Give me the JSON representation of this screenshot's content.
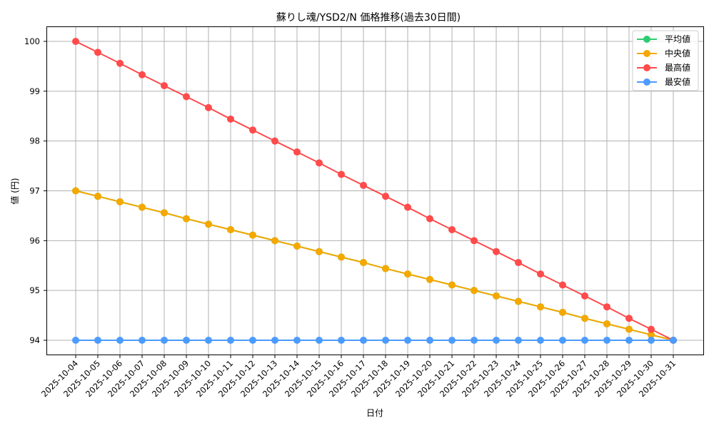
{
  "chart_data": {
    "type": "line",
    "title": "蘇りし魂/YSD2/N 価格推移(過去30日間)",
    "xlabel": "日付",
    "ylabel": "値 (円)",
    "ylim": [
      93.7,
      100.3
    ],
    "yticks": [
      94,
      95,
      96,
      97,
      98,
      99,
      100
    ],
    "grid": true,
    "legend_position": "upper right",
    "x": [
      "2025-10-04",
      "2025-10-05",
      "2025-10-06",
      "2025-10-07",
      "2025-10-08",
      "2025-10-09",
      "2025-10-10",
      "2025-10-11",
      "2025-10-12",
      "2025-10-13",
      "2025-10-14",
      "2025-10-15",
      "2025-10-16",
      "2025-10-17",
      "2025-10-18",
      "2025-10-19",
      "2025-10-20",
      "2025-10-21",
      "2025-10-22",
      "2025-10-23",
      "2025-10-24",
      "2025-10-25",
      "2025-10-26",
      "2025-10-27",
      "2025-10-28",
      "2025-10-29",
      "2025-10-30",
      "2025-10-31"
    ],
    "series": [
      {
        "name": "平均値",
        "color": "#2ecc71",
        "values": [
          97.0,
          96.89,
          96.78,
          96.67,
          96.56,
          96.44,
          96.33,
          96.22,
          96.11,
          96.0,
          95.89,
          95.78,
          95.67,
          95.56,
          95.44,
          95.33,
          95.22,
          95.11,
          95.0,
          94.89,
          94.78,
          94.67,
          94.56,
          94.44,
          94.33,
          94.22,
          94.11,
          94.0
        ]
      },
      {
        "name": "中央値",
        "color": "#f5a800",
        "values": [
          97.0,
          96.89,
          96.78,
          96.67,
          96.56,
          96.44,
          96.33,
          96.22,
          96.11,
          96.0,
          95.89,
          95.78,
          95.67,
          95.56,
          95.44,
          95.33,
          95.22,
          95.11,
          95.0,
          94.89,
          94.78,
          94.67,
          94.56,
          94.44,
          94.33,
          94.22,
          94.11,
          94.0
        ]
      },
      {
        "name": "最高値",
        "color": "#ff4b4b",
        "values": [
          100.0,
          99.78,
          99.56,
          99.33,
          99.11,
          98.89,
          98.67,
          98.44,
          98.22,
          98.0,
          97.78,
          97.56,
          97.33,
          97.11,
          96.89,
          96.67,
          96.44,
          96.22,
          96.0,
          95.78,
          95.56,
          95.33,
          95.11,
          94.89,
          94.67,
          94.44,
          94.22,
          94.0
        ]
      },
      {
        "name": "最安値",
        "color": "#4c9bff",
        "values": [
          94.0,
          94.0,
          94.0,
          94.0,
          94.0,
          94.0,
          94.0,
          94.0,
          94.0,
          94.0,
          94.0,
          94.0,
          94.0,
          94.0,
          94.0,
          94.0,
          94.0,
          94.0,
          94.0,
          94.0,
          94.0,
          94.0,
          94.0,
          94.0,
          94.0,
          94.0,
          94.0,
          94.0
        ]
      }
    ]
  }
}
